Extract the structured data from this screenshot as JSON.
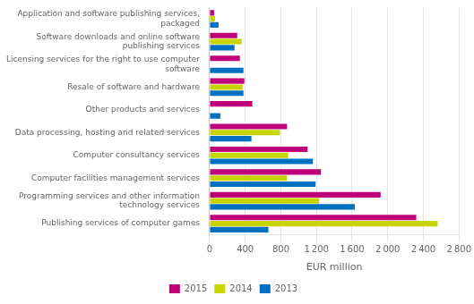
{
  "chart_data": {
    "type": "bar",
    "orientation": "horizontal",
    "categories": [
      "Application and software publishing services,\npackaged",
      "Software downloads and online software\npublishing services",
      "Licensing services for the right to use computer\nsoftware",
      "Resale of software and hardware",
      "Other products and services",
      "Data processing, hosting and related services",
      "Computer consultancy services",
      "Computer facilities management services",
      "Programming services and other information\ntechnology services",
      "Publishing services of computer games"
    ],
    "series": [
      {
        "name": "2015",
        "color": "#c0007a",
        "values": [
          50,
          310,
          340,
          390,
          480,
          870,
          1100,
          1250,
          1920,
          2320
        ]
      },
      {
        "name": "2014",
        "color": "#c8d400",
        "values": [
          60,
          360,
          0,
          370,
          0,
          790,
          880,
          870,
          1230,
          2560
        ]
      },
      {
        "name": "2013",
        "color": "#0070c0",
        "values": [
          100,
          280,
          380,
          380,
          120,
          470,
          1160,
          1190,
          1630,
          660
        ]
      }
    ],
    "xlabel": "EUR million",
    "xlim": [
      0,
      2800
    ],
    "xticks": [
      0,
      400,
      800,
      {
        "value": 1200,
        "label": "1 200"
      },
      {
        "value": 1600,
        "label": "1 600"
      },
      {
        "value": 2000,
        "label": "2 000"
      },
      {
        "value": 2400,
        "label": "2 400"
      },
      {
        "value": 2800,
        "label": "2 800"
      }
    ],
    "grid": true,
    "legend": "bottom"
  }
}
